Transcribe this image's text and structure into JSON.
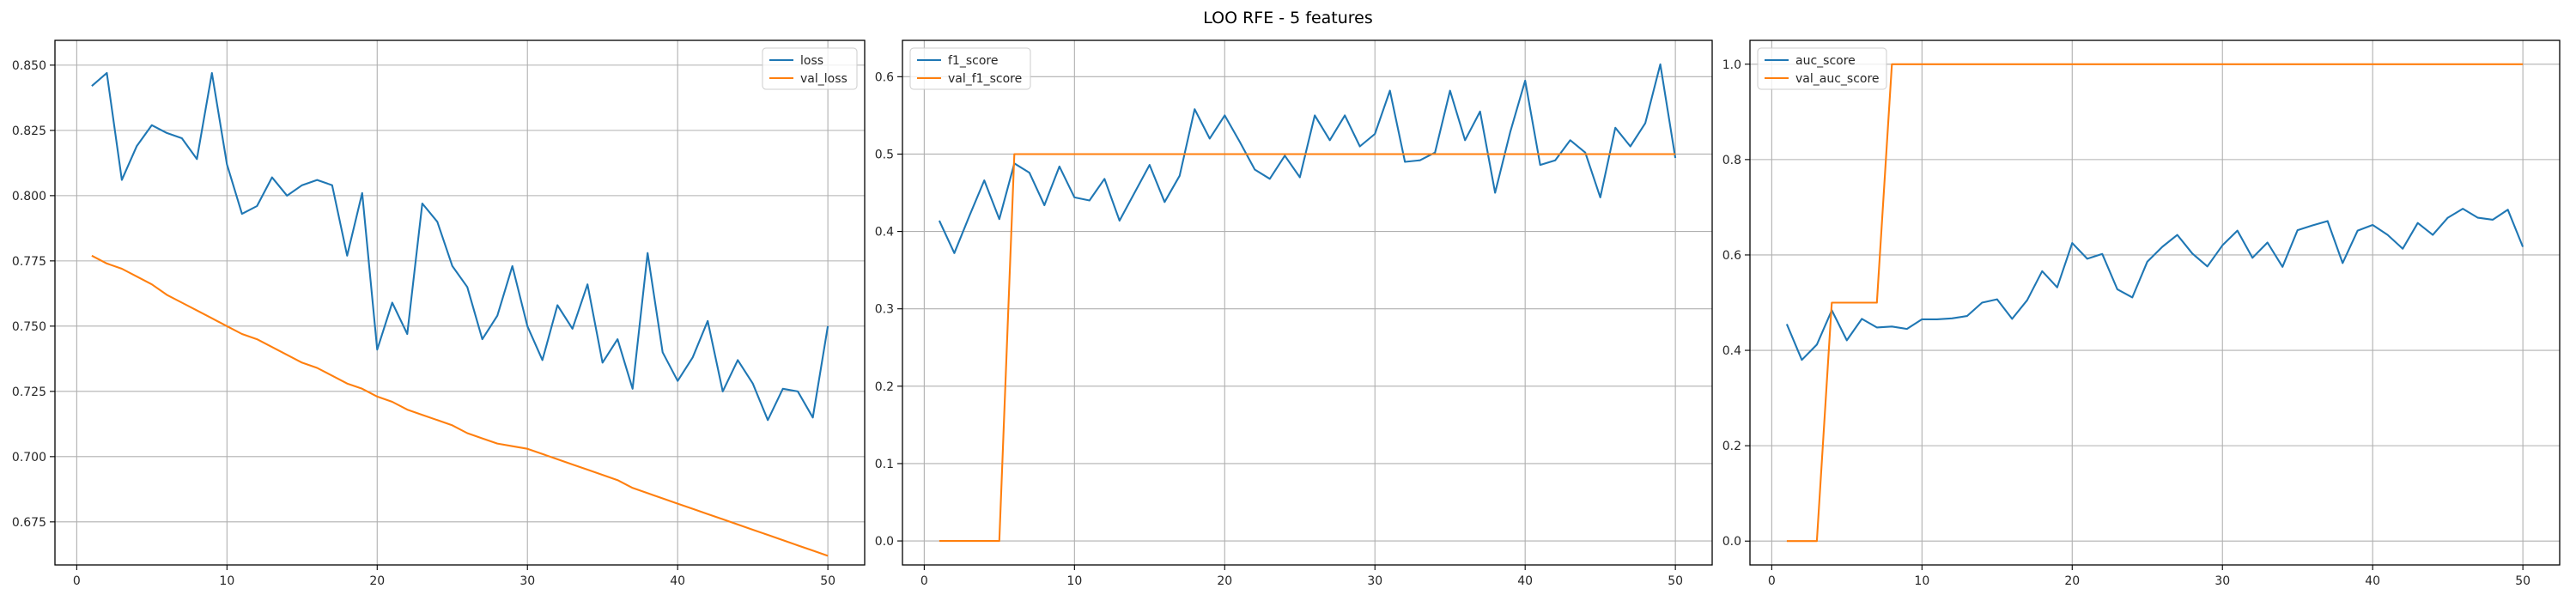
{
  "suptitle": "LOO RFE - 5 features",
  "chart_data": [
    {
      "type": "line",
      "x": [
        1,
        2,
        3,
        4,
        5,
        6,
        7,
        8,
        9,
        10,
        11,
        12,
        13,
        14,
        15,
        16,
        17,
        18,
        19,
        20,
        21,
        22,
        23,
        24,
        25,
        26,
        27,
        28,
        29,
        30,
        31,
        32,
        33,
        34,
        35,
        36,
        37,
        38,
        39,
        40,
        41,
        42,
        43,
        44,
        45,
        46,
        47,
        48,
        49,
        50
      ],
      "series": [
        {
          "name": "loss",
          "color": "#1f77b4",
          "values": [
            0.842,
            0.847,
            0.806,
            0.819,
            0.827,
            0.824,
            0.822,
            0.814,
            0.847,
            0.812,
            0.793,
            0.796,
            0.807,
            0.8,
            0.804,
            0.806,
            0.804,
            0.777,
            0.801,
            0.741,
            0.759,
            0.747,
            0.797,
            0.79,
            0.773,
            0.765,
            0.745,
            0.754,
            0.773,
            0.75,
            0.737,
            0.758,
            0.749,
            0.766,
            0.736,
            0.745,
            0.726,
            0.778,
            0.74,
            0.729,
            0.738,
            0.752,
            0.725,
            0.737,
            0.728,
            0.714,
            0.726,
            0.725,
            0.715,
            0.75
          ]
        },
        {
          "name": "val_loss",
          "color": "#ff7f0e",
          "values": [
            0.777,
            0.774,
            0.772,
            0.769,
            0.766,
            0.762,
            0.759,
            0.756,
            0.753,
            0.75,
            0.747,
            0.745,
            0.742,
            0.739,
            0.736,
            0.734,
            0.731,
            0.728,
            0.726,
            0.723,
            0.721,
            0.718,
            0.716,
            0.714,
            0.712,
            0.709,
            0.707,
            0.705,
            0.704,
            0.703,
            0.701,
            0.699,
            0.697,
            0.695,
            0.693,
            0.691,
            0.688,
            0.686,
            0.684,
            0.682,
            0.68,
            0.678,
            0.676,
            0.674,
            0.672,
            0.67,
            0.668,
            0.666,
            0.664,
            0.662
          ]
        }
      ],
      "ylim": [
        0.6585,
        0.8595
      ],
      "xlim": [
        -1.45,
        52.45
      ],
      "yticks": [
        0.675,
        0.7,
        0.725,
        0.75,
        0.775,
        0.8,
        0.825,
        0.85
      ],
      "ytick_labels": [
        "0.675",
        "0.700",
        "0.725",
        "0.750",
        "0.775",
        "0.800",
        "0.825",
        "0.850"
      ],
      "xticks": [
        0,
        10,
        20,
        30,
        40,
        50
      ],
      "xtick_labels": [
        "0",
        "10",
        "20",
        "30",
        "40",
        "50"
      ],
      "grid": true,
      "legend": "upper-right"
    },
    {
      "type": "line",
      "x": [
        1,
        2,
        3,
        4,
        5,
        6,
        7,
        8,
        9,
        10,
        11,
        12,
        13,
        14,
        15,
        16,
        17,
        18,
        19,
        20,
        21,
        22,
        23,
        24,
        25,
        26,
        27,
        28,
        29,
        30,
        31,
        32,
        33,
        34,
        35,
        36,
        37,
        38,
        39,
        40,
        41,
        42,
        43,
        44,
        45,
        46,
        47,
        48,
        49,
        50
      ],
      "series": [
        {
          "name": "f1_score",
          "color": "#1f77b4",
          "values": [
            0.414,
            0.372,
            0.42,
            0.466,
            0.416,
            0.488,
            0.476,
            0.434,
            0.484,
            0.444,
            0.44,
            0.468,
            0.414,
            0.45,
            0.486,
            0.438,
            0.472,
            0.558,
            0.52,
            0.55,
            0.516,
            0.48,
            0.468,
            0.498,
            0.47,
            0.55,
            0.518,
            0.55,
            0.51,
            0.526,
            0.582,
            0.49,
            0.492,
            0.502,
            0.582,
            0.518,
            0.555,
            0.45,
            0.528,
            0.595,
            0.486,
            0.492,
            0.518,
            0.502,
            0.444,
            0.534,
            0.51,
            0.54,
            0.616,
            0.495
          ]
        },
        {
          "name": "val_f1_score",
          "color": "#ff7f0e",
          "values": [
            0.0,
            0.0,
            0.0,
            0.0,
            0.0,
            0.5,
            0.5,
            0.5,
            0.5,
            0.5,
            0.5,
            0.5,
            0.5,
            0.5,
            0.5,
            0.5,
            0.5,
            0.5,
            0.5,
            0.5,
            0.5,
            0.5,
            0.5,
            0.5,
            0.5,
            0.5,
            0.5,
            0.5,
            0.5,
            0.5,
            0.5,
            0.5,
            0.5,
            0.5,
            0.5,
            0.5,
            0.5,
            0.5,
            0.5,
            0.5,
            0.5,
            0.5,
            0.5,
            0.5,
            0.5,
            0.5,
            0.5,
            0.5,
            0.5,
            0.5
          ]
        }
      ],
      "ylim": [
        -0.031,
        0.647
      ],
      "xlim": [
        -1.45,
        52.45
      ],
      "yticks": [
        0.0,
        0.1,
        0.2,
        0.3,
        0.4,
        0.5,
        0.6
      ],
      "ytick_labels": [
        "0.0",
        "0.1",
        "0.2",
        "0.3",
        "0.4",
        "0.5",
        "0.6"
      ],
      "xticks": [
        0,
        10,
        20,
        30,
        40,
        50
      ],
      "xtick_labels": [
        "0",
        "10",
        "20",
        "30",
        "40",
        "50"
      ],
      "grid": true,
      "legend": "upper-left"
    },
    {
      "type": "line",
      "x": [
        1,
        2,
        3,
        4,
        5,
        6,
        7,
        8,
        9,
        10,
        11,
        12,
        13,
        14,
        15,
        16,
        17,
        18,
        19,
        20,
        21,
        22,
        23,
        24,
        25,
        26,
        27,
        28,
        29,
        30,
        31,
        32,
        33,
        34,
        35,
        36,
        37,
        38,
        39,
        40,
        41,
        42,
        43,
        44,
        45,
        46,
        47,
        48,
        49,
        50
      ],
      "series": [
        {
          "name": "auc_score",
          "color": "#1f77b4",
          "values": [
            0.455,
            0.38,
            0.412,
            0.484,
            0.421,
            0.466,
            0.448,
            0.45,
            0.445,
            0.465,
            0.465,
            0.467,
            0.472,
            0.5,
            0.507,
            0.466,
            0.505,
            0.566,
            0.532,
            0.625,
            0.592,
            0.602,
            0.528,
            0.511,
            0.586,
            0.617,
            0.642,
            0.603,
            0.576,
            0.62,
            0.651,
            0.594,
            0.626,
            0.575,
            0.652,
            0.662,
            0.671,
            0.583,
            0.651,
            0.663,
            0.642,
            0.613,
            0.667,
            0.642,
            0.678,
            0.697,
            0.678,
            0.674,
            0.695,
            0.617
          ]
        },
        {
          "name": "val_auc_score",
          "color": "#ff7f0e",
          "values": [
            0.0,
            0.0,
            0.0,
            0.5,
            0.5,
            0.5,
            0.5,
            1.0,
            1.0,
            1.0,
            1.0,
            1.0,
            1.0,
            1.0,
            1.0,
            1.0,
            1.0,
            1.0,
            1.0,
            1.0,
            1.0,
            1.0,
            1.0,
            1.0,
            1.0,
            1.0,
            1.0,
            1.0,
            1.0,
            1.0,
            1.0,
            1.0,
            1.0,
            1.0,
            1.0,
            1.0,
            1.0,
            1.0,
            1.0,
            1.0,
            1.0,
            1.0,
            1.0,
            1.0,
            1.0,
            1.0,
            1.0,
            1.0,
            1.0,
            1.0
          ]
        }
      ],
      "ylim": [
        -0.05,
        1.05
      ],
      "xlim": [
        -1.45,
        52.45
      ],
      "yticks": [
        0.0,
        0.2,
        0.4,
        0.6,
        0.8,
        1.0
      ],
      "ytick_labels": [
        "0.0",
        "0.2",
        "0.4",
        "0.6",
        "0.8",
        "1.0"
      ],
      "xticks": [
        0,
        10,
        20,
        30,
        40,
        50
      ],
      "xtick_labels": [
        "0",
        "10",
        "20",
        "30",
        "40",
        "50"
      ],
      "grid": true,
      "legend": "upper-left"
    }
  ]
}
